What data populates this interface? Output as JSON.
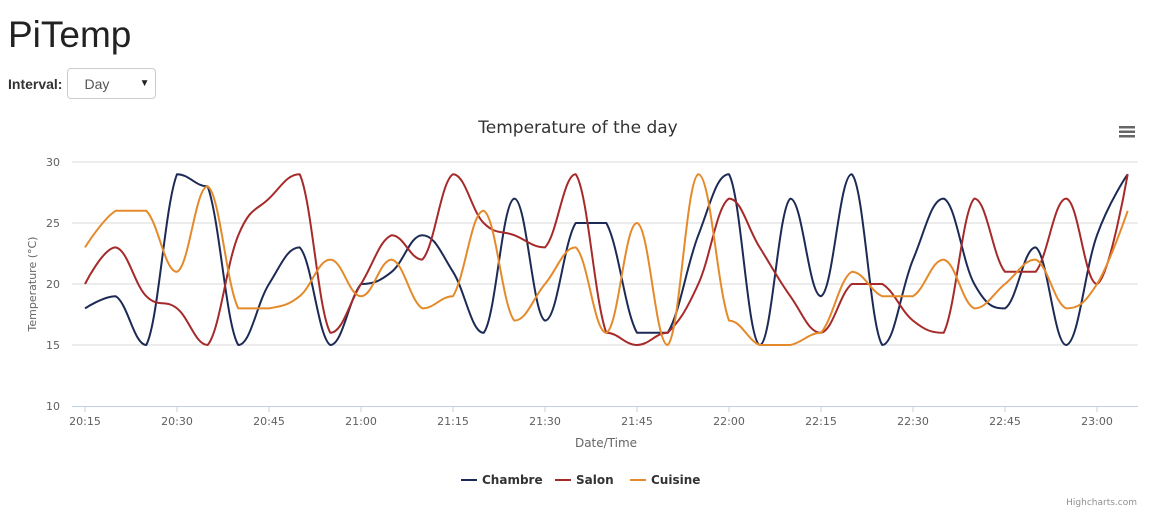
{
  "app": {
    "title": "PiTemp"
  },
  "controls": {
    "interval_label": "Interval:",
    "interval_value": "Day",
    "interval_options": [
      "Day"
    ]
  },
  "chart_menu_icon": "hamburger-menu-icon",
  "credits": "Highcharts.com",
  "chart_data": {
    "type": "line",
    "title": "Temperature of the day",
    "xlabel": "Date/Time",
    "ylabel": "Temperature (°C)",
    "ylim": [
      10,
      30
    ],
    "yticks": [
      "10",
      "15",
      "20",
      "25",
      "30"
    ],
    "xticks": [
      "20:15",
      "20:30",
      "20:45",
      "21:00",
      "21:15",
      "21:30",
      "21:45",
      "22:00",
      "22:15",
      "22:30",
      "22:45",
      "23:00"
    ],
    "grid": true,
    "legend_position": "bottom-center",
    "series": [
      {
        "name": "Chambre",
        "color": "#1c2a55",
        "points": [
          [
            "20:15",
            18
          ],
          [
            "20:20",
            19
          ],
          [
            "20:25",
            15
          ],
          [
            "20:30",
            29
          ],
          [
            "20:35",
            28
          ],
          [
            "20:40",
            15
          ],
          [
            "20:45",
            20
          ],
          [
            "20:50",
            23
          ],
          [
            "20:55",
            15
          ],
          [
            "21:00",
            20
          ],
          [
            "21:05",
            21
          ],
          [
            "21:10",
            24
          ],
          [
            "21:15",
            21
          ],
          [
            "21:20",
            16
          ],
          [
            "21:25",
            27
          ],
          [
            "21:30",
            17
          ],
          [
            "21:35",
            25
          ],
          [
            "21:40",
            25
          ],
          [
            "21:45",
            16
          ],
          [
            "21:50",
            16
          ],
          [
            "21:55",
            24
          ],
          [
            "22:00",
            29
          ],
          [
            "22:05",
            15
          ],
          [
            "22:10",
            27
          ],
          [
            "22:15",
            19
          ],
          [
            "22:20",
            29
          ],
          [
            "22:25",
            15
          ],
          [
            "22:30",
            22
          ],
          [
            "22:35",
            27
          ],
          [
            "22:40",
            20
          ],
          [
            "22:45",
            18
          ],
          [
            "22:50",
            23
          ],
          [
            "22:55",
            15
          ],
          [
            "23:00",
            24
          ],
          [
            "23:05",
            29
          ]
        ]
      },
      {
        "name": "Salon",
        "color": "#a62a2a",
        "points": [
          [
            "20:15",
            20
          ],
          [
            "20:20",
            23
          ],
          [
            "20:25",
            19
          ],
          [
            "20:30",
            18
          ],
          [
            "20:35",
            15
          ],
          [
            "20:40",
            24
          ],
          [
            "20:45",
            27
          ],
          [
            "20:50",
            29
          ],
          [
            "20:55",
            16
          ],
          [
            "21:00",
            20
          ],
          [
            "21:05",
            24
          ],
          [
            "21:10",
            22
          ],
          [
            "21:15",
            29
          ],
          [
            "21:20",
            25
          ],
          [
            "21:25",
            24
          ],
          [
            "21:30",
            23
          ],
          [
            "21:35",
            29
          ],
          [
            "21:40",
            16
          ],
          [
            "21:45",
            15
          ],
          [
            "21:50",
            16
          ],
          [
            "21:55",
            20
          ],
          [
            "22:00",
            27
          ],
          [
            "22:05",
            23
          ],
          [
            "22:10",
            19
          ],
          [
            "22:15",
            16
          ],
          [
            "22:20",
            20
          ],
          [
            "22:25",
            20
          ],
          [
            "22:30",
            17
          ],
          [
            "22:35",
            16
          ],
          [
            "22:40",
            27
          ],
          [
            "22:45",
            21
          ],
          [
            "22:50",
            21
          ],
          [
            "22:55",
            27
          ],
          [
            "23:00",
            20
          ],
          [
            "23:05",
            29
          ]
        ]
      },
      {
        "name": "Cuisine",
        "color": "#e58a2b",
        "points": [
          [
            "20:15",
            23
          ],
          [
            "20:20",
            26
          ],
          [
            "20:25",
            26
          ],
          [
            "20:30",
            21
          ],
          [
            "20:35",
            28
          ],
          [
            "20:40",
            18
          ],
          [
            "20:45",
            18
          ],
          [
            "20:50",
            19
          ],
          [
            "20:55",
            22
          ],
          [
            "21:00",
            19
          ],
          [
            "21:05",
            22
          ],
          [
            "21:10",
            18
          ],
          [
            "21:15",
            19
          ],
          [
            "21:20",
            26
          ],
          [
            "21:25",
            17
          ],
          [
            "21:30",
            20
          ],
          [
            "21:35",
            23
          ],
          [
            "21:40",
            16
          ],
          [
            "21:45",
            25
          ],
          [
            "21:50",
            15
          ],
          [
            "21:55",
            29
          ],
          [
            "22:00",
            17
          ],
          [
            "22:05",
            15
          ],
          [
            "22:10",
            15
          ],
          [
            "22:15",
            16
          ],
          [
            "22:20",
            21
          ],
          [
            "22:25",
            19
          ],
          [
            "22:30",
            19
          ],
          [
            "22:35",
            22
          ],
          [
            "22:40",
            18
          ],
          [
            "22:45",
            20
          ],
          [
            "22:50",
            22
          ],
          [
            "22:55",
            18
          ],
          [
            "23:00",
            20
          ],
          [
            "23:05",
            26
          ]
        ]
      }
    ]
  }
}
